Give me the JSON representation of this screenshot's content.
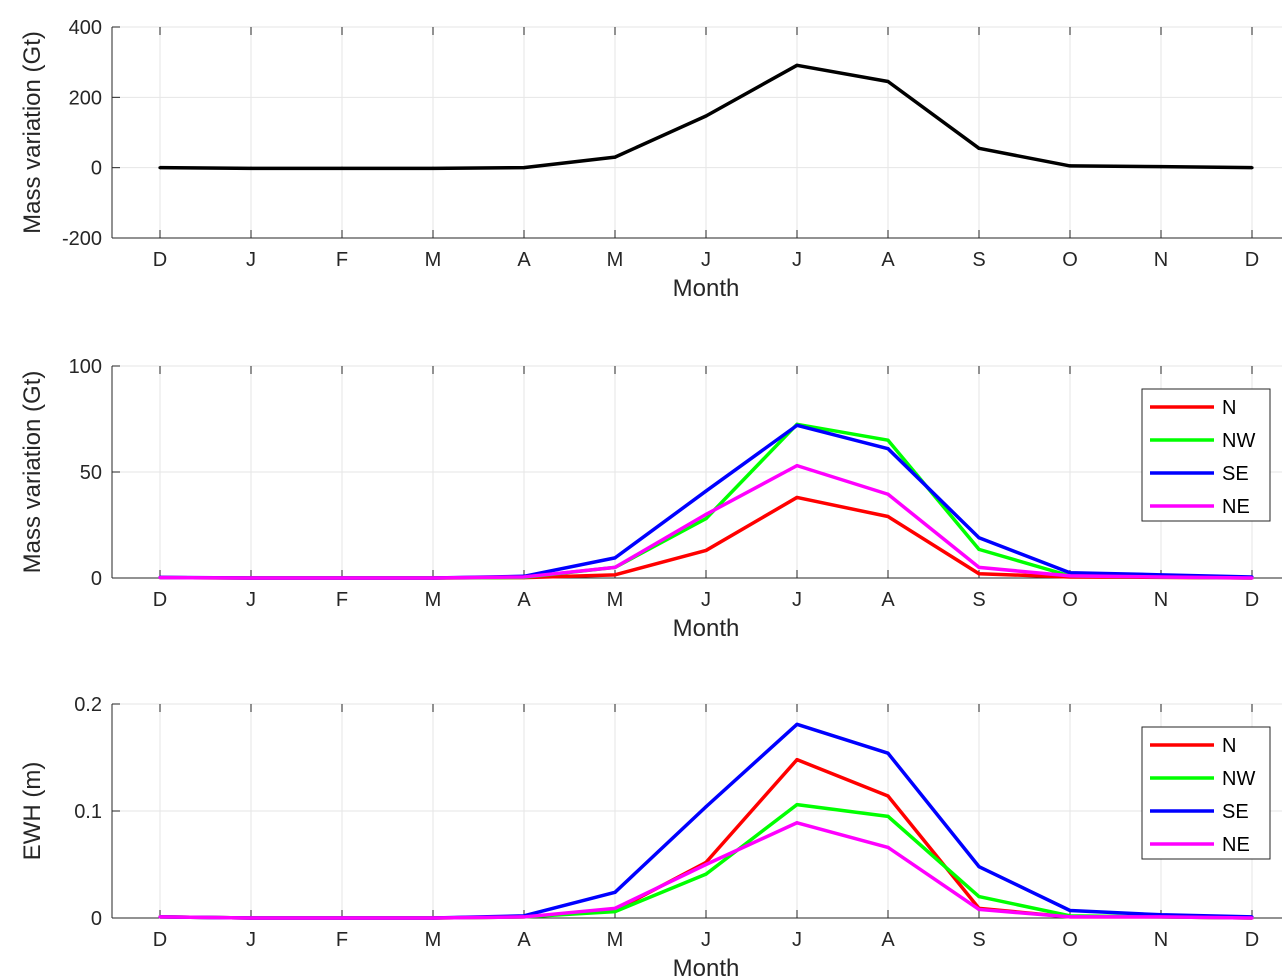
{
  "chart_data": [
    {
      "type": "line",
      "categories": [
        "D",
        "J",
        "F",
        "M",
        "A",
        "M",
        "J",
        "J",
        "A",
        "S",
        "O",
        "N",
        "D"
      ],
      "xlabel": "Month",
      "ylabel": "Mass variation (Gt)",
      "ylim": [
        -200,
        400
      ],
      "yticks": [
        "-200",
        "0",
        "200",
        "400"
      ],
      "grid": true,
      "legend": null,
      "series": [
        {
          "color": "#000000",
          "values": [
            0,
            -2,
            -2,
            -2,
            0,
            30,
            147,
            291,
            245,
            55,
            5,
            3,
            0
          ]
        }
      ]
    },
    {
      "type": "line",
      "categories": [
        "D",
        "J",
        "F",
        "M",
        "A",
        "M",
        "J",
        "J",
        "A",
        "S",
        "O",
        "N",
        "D"
      ],
      "xlabel": "Month",
      "ylabel": "Mass variation (Gt)",
      "ylim": [
        0,
        100
      ],
      "yticks": [
        "0",
        "50",
        "100"
      ],
      "grid": true,
      "legend": "top-right",
      "series": [
        {
          "name": "N",
          "color": "#ff0000",
          "values": [
            0.2,
            0,
            0,
            0,
            0.2,
            1.5,
            13,
            38,
            29,
            2,
            0.5,
            0.3,
            0
          ]
        },
        {
          "name": "NW",
          "color": "#00ff00",
          "values": [
            0.2,
            0,
            0,
            0,
            0.3,
            5,
            28,
            72.5,
            65,
            13.5,
            1,
            0.5,
            0
          ]
        },
        {
          "name": "SE",
          "color": "#0000ff",
          "values": [
            0.3,
            0,
            0,
            0,
            0.8,
            9.5,
            41,
            72,
            61,
            19,
            2.5,
            1.5,
            0.5
          ]
        },
        {
          "name": "NE",
          "color": "#ff00ff",
          "values": [
            0.2,
            0,
            0,
            0,
            0.5,
            5,
            30,
            53,
            39.5,
            5,
            1,
            0.5,
            0
          ]
        }
      ]
    },
    {
      "type": "line",
      "categories": [
        "D",
        "J",
        "F",
        "M",
        "A",
        "M",
        "J",
        "J",
        "A",
        "S",
        "O",
        "N",
        "D"
      ],
      "xlabel": "Month",
      "ylabel": "EWH (m)",
      "ylim": [
        0,
        0.2
      ],
      "yticks": [
        "0",
        "0.1",
        "0.2"
      ],
      "grid": true,
      "legend": "top-right",
      "series": [
        {
          "name": "N",
          "color": "#ff0000",
          "values": [
            0.001,
            0,
            0,
            0,
            0.001,
            0.007,
            0.052,
            0.148,
            0.114,
            0.009,
            0.001,
            0.001,
            0
          ]
        },
        {
          "name": "NW",
          "color": "#00ff00",
          "values": [
            0.001,
            0,
            0,
            0,
            0.001,
            0.006,
            0.041,
            0.106,
            0.095,
            0.02,
            0.002,
            0.001,
            0
          ]
        },
        {
          "name": "SE",
          "color": "#0000ff",
          "values": [
            0.001,
            0,
            0,
            0,
            0.002,
            0.024,
            0.104,
            0.181,
            0.154,
            0.048,
            0.007,
            0.003,
            0.001
          ]
        },
        {
          "name": "NE",
          "color": "#ff00ff",
          "values": [
            0.001,
            0,
            0,
            0,
            0.001,
            0.009,
            0.05,
            0.089,
            0.066,
            0.008,
            0.001,
            0.001,
            0
          ]
        }
      ]
    }
  ]
}
